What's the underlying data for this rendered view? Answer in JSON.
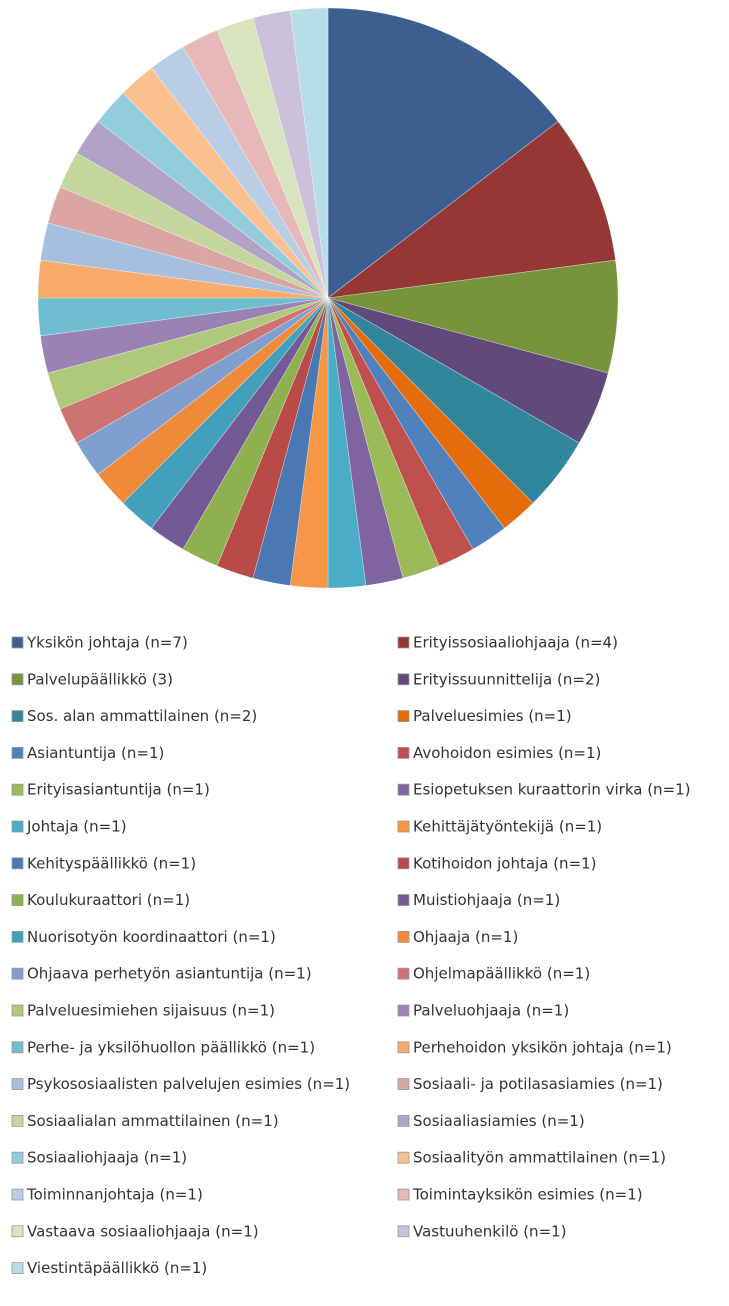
{
  "chart_data": {
    "type": "pie",
    "categories": [
      "Yksikön johtaja (n=7)",
      "Erityissosiaaliohjaaja (n=4)",
      "Palvelupäällikkö (3)",
      "Erityissuunnittelija (n=2)",
      "Sos. alan ammattilainen (n=2)",
      "Palveluesimies (n=1)",
      "Asiantuntija (n=1)",
      "Avohoidon esimies (n=1)",
      "Erityisasiantuntija (n=1)",
      "Esiopetuksen kuraattorin virka (n=1)",
      "Johtaja (n=1)",
      "Kehittäjätyöntekijä (n=1)",
      "Kehityspäällikkö (n=1)",
      "Kotihoidon johtaja (n=1)",
      "Koulukuraattori (n=1)",
      "Muistiohjaaja (n=1)",
      "Nuorisotyön koordinaattori (n=1)",
      "Ohjaaja (n=1)",
      "Ohjaava perhetyön asiantuntija (n=1)",
      "Ohjelmapäällikkö (n=1)",
      "Palveluesimiehen sijaisuus (n=1)",
      "Palveluohjaaja (n=1)",
      "Perhe- ja yksilöhuollon päällikkö (n=1)",
      "Perhehoidon yksikön johtaja (n=1)",
      "Psykososiaalisten palvelujen esimies (n=1)",
      "Sosiaali- ja potilasasiamies (n=1)",
      "Sosiaalialan ammattilainen (n=1)",
      "Sosiaaliasiamies (n=1)",
      "Sosiaaliohjaaja (n=1)",
      "Sosiaalityön ammattilainen (n=1)",
      "Toiminnanjohtaja (n=1)",
      "Toimintayksikön esimies (n=1)",
      "Vastaava sosiaaliohjaaja (n=1)",
      "Vastuuhenkilö (n=1)",
      "Viestintäpäällikkö (n=1)"
    ],
    "values": [
      7,
      4,
      3,
      2,
      2,
      1,
      1,
      1,
      1,
      1,
      1,
      1,
      1,
      1,
      1,
      1,
      1,
      1,
      1,
      1,
      1,
      1,
      1,
      1,
      1,
      1,
      1,
      1,
      1,
      1,
      1,
      1,
      1,
      1,
      1
    ],
    "colors": [
      "#3c5e91",
      "#953735",
      "#77933c",
      "#5f4a7b",
      "#31859c",
      "#e46c0a",
      "#4f81bd",
      "#c0504d",
      "#9bbb59",
      "#8064a2",
      "#4bacc6",
      "#f79646",
      "#4a78b3",
      "#b84a47",
      "#8fb04f",
      "#735a97",
      "#42a0ba",
      "#ee8a3a",
      "#7f9fcf",
      "#cd7371",
      "#afc97a",
      "#9983b5",
      "#6fbdd1",
      "#f9ab6b",
      "#a7bfde",
      "#dba5a4",
      "#c3d69b",
      "#b3a2c7",
      "#93cddd",
      "#fac090",
      "#b9cde5",
      "#e6b9b8",
      "#d7e4bd",
      "#ccc1da",
      "#b7dee8"
    ],
    "legend": "bottom"
  }
}
